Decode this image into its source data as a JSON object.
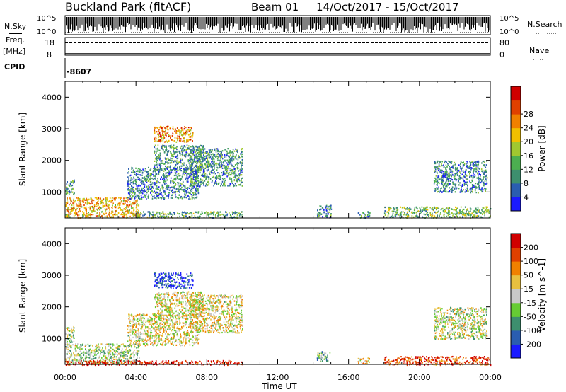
{
  "header": {
    "site": "Buckland Park (fitACF)",
    "beam": "Beam 01",
    "dates": "14/Oct/2017 - 15/Oct/2017"
  },
  "strips": {
    "nsky_label": "N.Sky",
    "nsky_ticks": [
      "10^5",
      "10^0"
    ],
    "nsearch_label": "N.Search",
    "nsearch_ticks": [
      "10^5",
      "10^0"
    ],
    "freq_label": "Freq.",
    "freq_unit": "[MHz]",
    "freq_ticks": [
      "18",
      "8"
    ],
    "nave_label": "Nave",
    "nave_ticks": [
      "80",
      "0"
    ],
    "cpid_label": "CPID",
    "cpid_value": "-8607"
  },
  "chart_data": [
    {
      "type": "heatmap",
      "name": "power",
      "ylabel": "Slant Range [km]",
      "yticks": [
        1000,
        2000,
        3000,
        4000
      ],
      "ylim": [
        180,
        4500
      ],
      "xlim": [
        0,
        24
      ],
      "colorbar": {
        "label": "Power [dB]",
        "ticks": [
          "4",
          "8",
          "12",
          "16",
          "20",
          "24",
          "28"
        ],
        "colors": [
          "#1a1aff",
          "#2a5db0",
          "#3d8f6e",
          "#4caf50",
          "#a0c830",
          "#f0c000",
          "#f08000",
          "#e04000",
          "#d00000"
        ]
      },
      "regions": [
        {
          "t": [
            0.0,
            4.2
          ],
          "r": [
            200,
            850
          ],
          "level": 0.65
        },
        {
          "t": [
            0.0,
            0.5
          ],
          "r": [
            900,
            1400
          ],
          "level": 0.3
        },
        {
          "t": [
            3.5,
            7.5
          ],
          "r": [
            800,
            1800
          ],
          "level": 0.25
        },
        {
          "t": [
            5.0,
            7.8
          ],
          "r": [
            1700,
            2500
          ],
          "level": 0.3
        },
        {
          "t": [
            5.0,
            7.2
          ],
          "r": [
            2600,
            3100
          ],
          "level": 0.7
        },
        {
          "t": [
            7.0,
            10.0
          ],
          "r": [
            1200,
            2400
          ],
          "level": 0.3
        },
        {
          "t": [
            4.0,
            10.0
          ],
          "r": [
            200,
            400
          ],
          "level": 0.35
        },
        {
          "t": [
            14.2,
            15.0
          ],
          "r": [
            200,
            600
          ],
          "level": 0.25
        },
        {
          "t": [
            16.5,
            17.2
          ],
          "r": [
            200,
            400
          ],
          "level": 0.3
        },
        {
          "t": [
            18.0,
            24.0
          ],
          "r": [
            200,
            550
          ],
          "level": 0.4
        },
        {
          "t": [
            20.8,
            23.8
          ],
          "r": [
            1000,
            2000
          ],
          "level": 0.25
        }
      ]
    },
    {
      "type": "heatmap",
      "name": "velocity",
      "ylabel": "Slant Range [km]",
      "yticks": [
        1000,
        2000,
        3000,
        4000
      ],
      "ylim": [
        180,
        4500
      ],
      "xlim": [
        0,
        24
      ],
      "colorbar": {
        "label": "Velocity [m s^-1]",
        "ticks": [
          "200",
          "100",
          "50",
          "15",
          "-15",
          "-50",
          "-100",
          "-200"
        ],
        "colors": [
          "#1a1aff",
          "#2a5db0",
          "#3d8f6e",
          "#66cc33",
          "#c8c8c8",
          "#e8c040",
          "#f08000",
          "#e04000",
          "#d00000"
        ]
      },
      "regions": [
        {
          "t": [
            0.0,
            4.2
          ],
          "r": [
            200,
            850
          ],
          "level": 0.45
        },
        {
          "t": [
            0.0,
            0.5
          ],
          "r": [
            900,
            1400
          ],
          "level": 0.45
        },
        {
          "t": [
            3.5,
            7.5
          ],
          "r": [
            800,
            1800
          ],
          "level": 0.55
        },
        {
          "t": [
            5.0,
            7.8
          ],
          "r": [
            1700,
            2500
          ],
          "level": 0.55
        },
        {
          "t": [
            5.0,
            7.2
          ],
          "r": [
            2600,
            3100
          ],
          "level": 0.1
        },
        {
          "t": [
            7.0,
            10.0
          ],
          "r": [
            1200,
            2400
          ],
          "level": 0.55
        },
        {
          "t": [
            0.0,
            10.0
          ],
          "r": [
            180,
            320
          ],
          "level": 0.95
        },
        {
          "t": [
            14.2,
            15.0
          ],
          "r": [
            300,
            600
          ],
          "level": 0.35
        },
        {
          "t": [
            16.5,
            17.2
          ],
          "r": [
            200,
            400
          ],
          "level": 0.6
        },
        {
          "t": [
            18.0,
            24.0
          ],
          "r": [
            180,
            450
          ],
          "level": 0.85
        },
        {
          "t": [
            20.8,
            23.8
          ],
          "r": [
            1000,
            2000
          ],
          "level": 0.5
        }
      ]
    }
  ],
  "xaxis": {
    "ticks": [
      "00:00",
      "04:00",
      "08:00",
      "12:00",
      "16:00",
      "20:00",
      "00:00"
    ],
    "label": "Time UT"
  }
}
